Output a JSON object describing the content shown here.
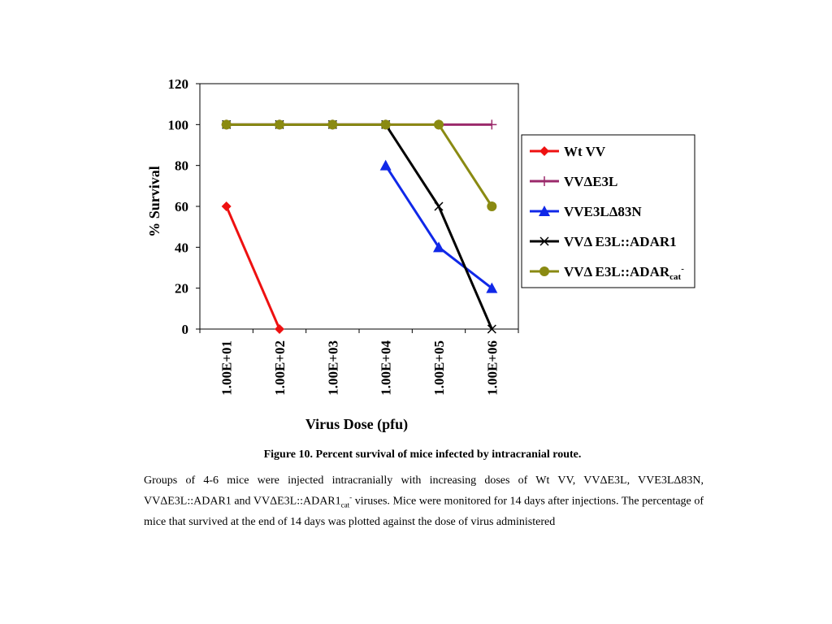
{
  "chart_data": {
    "type": "line",
    "x_categories": [
      "1.00E+01",
      "1.00E+02",
      "1.00E+03",
      "1.00E+04",
      "1.00E+05",
      "1.00E+06"
    ],
    "ylabel": "% Survival",
    "xlabel": "Virus Dose (pfu)",
    "ylim": [
      0,
      120
    ],
    "yticks": [
      0,
      20,
      40,
      60,
      80,
      100,
      120
    ],
    "grid": false,
    "legend_position": "right",
    "series": [
      {
        "name": "Wt VV",
        "color": "#ee1111",
        "marker": "diamond",
        "points": [
          [
            0,
            60
          ],
          [
            1,
            0
          ]
        ]
      },
      {
        "name": "VVΔE3L",
        "color": "#9b2a6b",
        "marker": "plus",
        "points": [
          [
            0,
            100
          ],
          [
            1,
            100
          ],
          [
            2,
            100
          ],
          [
            3,
            100
          ],
          [
            4,
            100
          ],
          [
            5,
            100
          ]
        ]
      },
      {
        "name": "VVE3LΔ83N",
        "color": "#1028e8",
        "marker": "triangle",
        "points": [
          [
            3,
            80
          ],
          [
            4,
            40
          ],
          [
            5,
            20
          ]
        ]
      },
      {
        "name": "VVΔ E3L::ADAR1",
        "color": "#000000",
        "marker": "x",
        "points": [
          [
            0,
            100
          ],
          [
            1,
            100
          ],
          [
            2,
            100
          ],
          [
            3,
            100
          ],
          [
            4,
            60
          ],
          [
            5,
            0
          ]
        ]
      },
      {
        "name": "VVΔ E3L::ADAR",
        "name_sub": "cat",
        "name_sup": "-",
        "color": "#8a8a12",
        "marker": "circle",
        "points": [
          [
            0,
            100
          ],
          [
            1,
            100
          ],
          [
            2,
            100
          ],
          [
            3,
            100
          ],
          [
            4,
            100
          ],
          [
            5,
            60
          ]
        ]
      }
    ]
  },
  "caption": "Figure 10. Percent survival of mice infected by intracranial route.",
  "description": {
    "part1": "Groups of 4-6 mice were injected intracranially with increasing doses of Wt VV, VVΔE3L, VVE3LΔ83N, VVΔE3L::ADAR1 and VVΔE3L::ADAR1",
    "sub": "cat",
    "sup": "-",
    "part2": " viruses.  Mice were monitored for 14 days after injections.  The percentage of mice that survived at the end of 14 days was plotted against the dose of virus administered"
  }
}
